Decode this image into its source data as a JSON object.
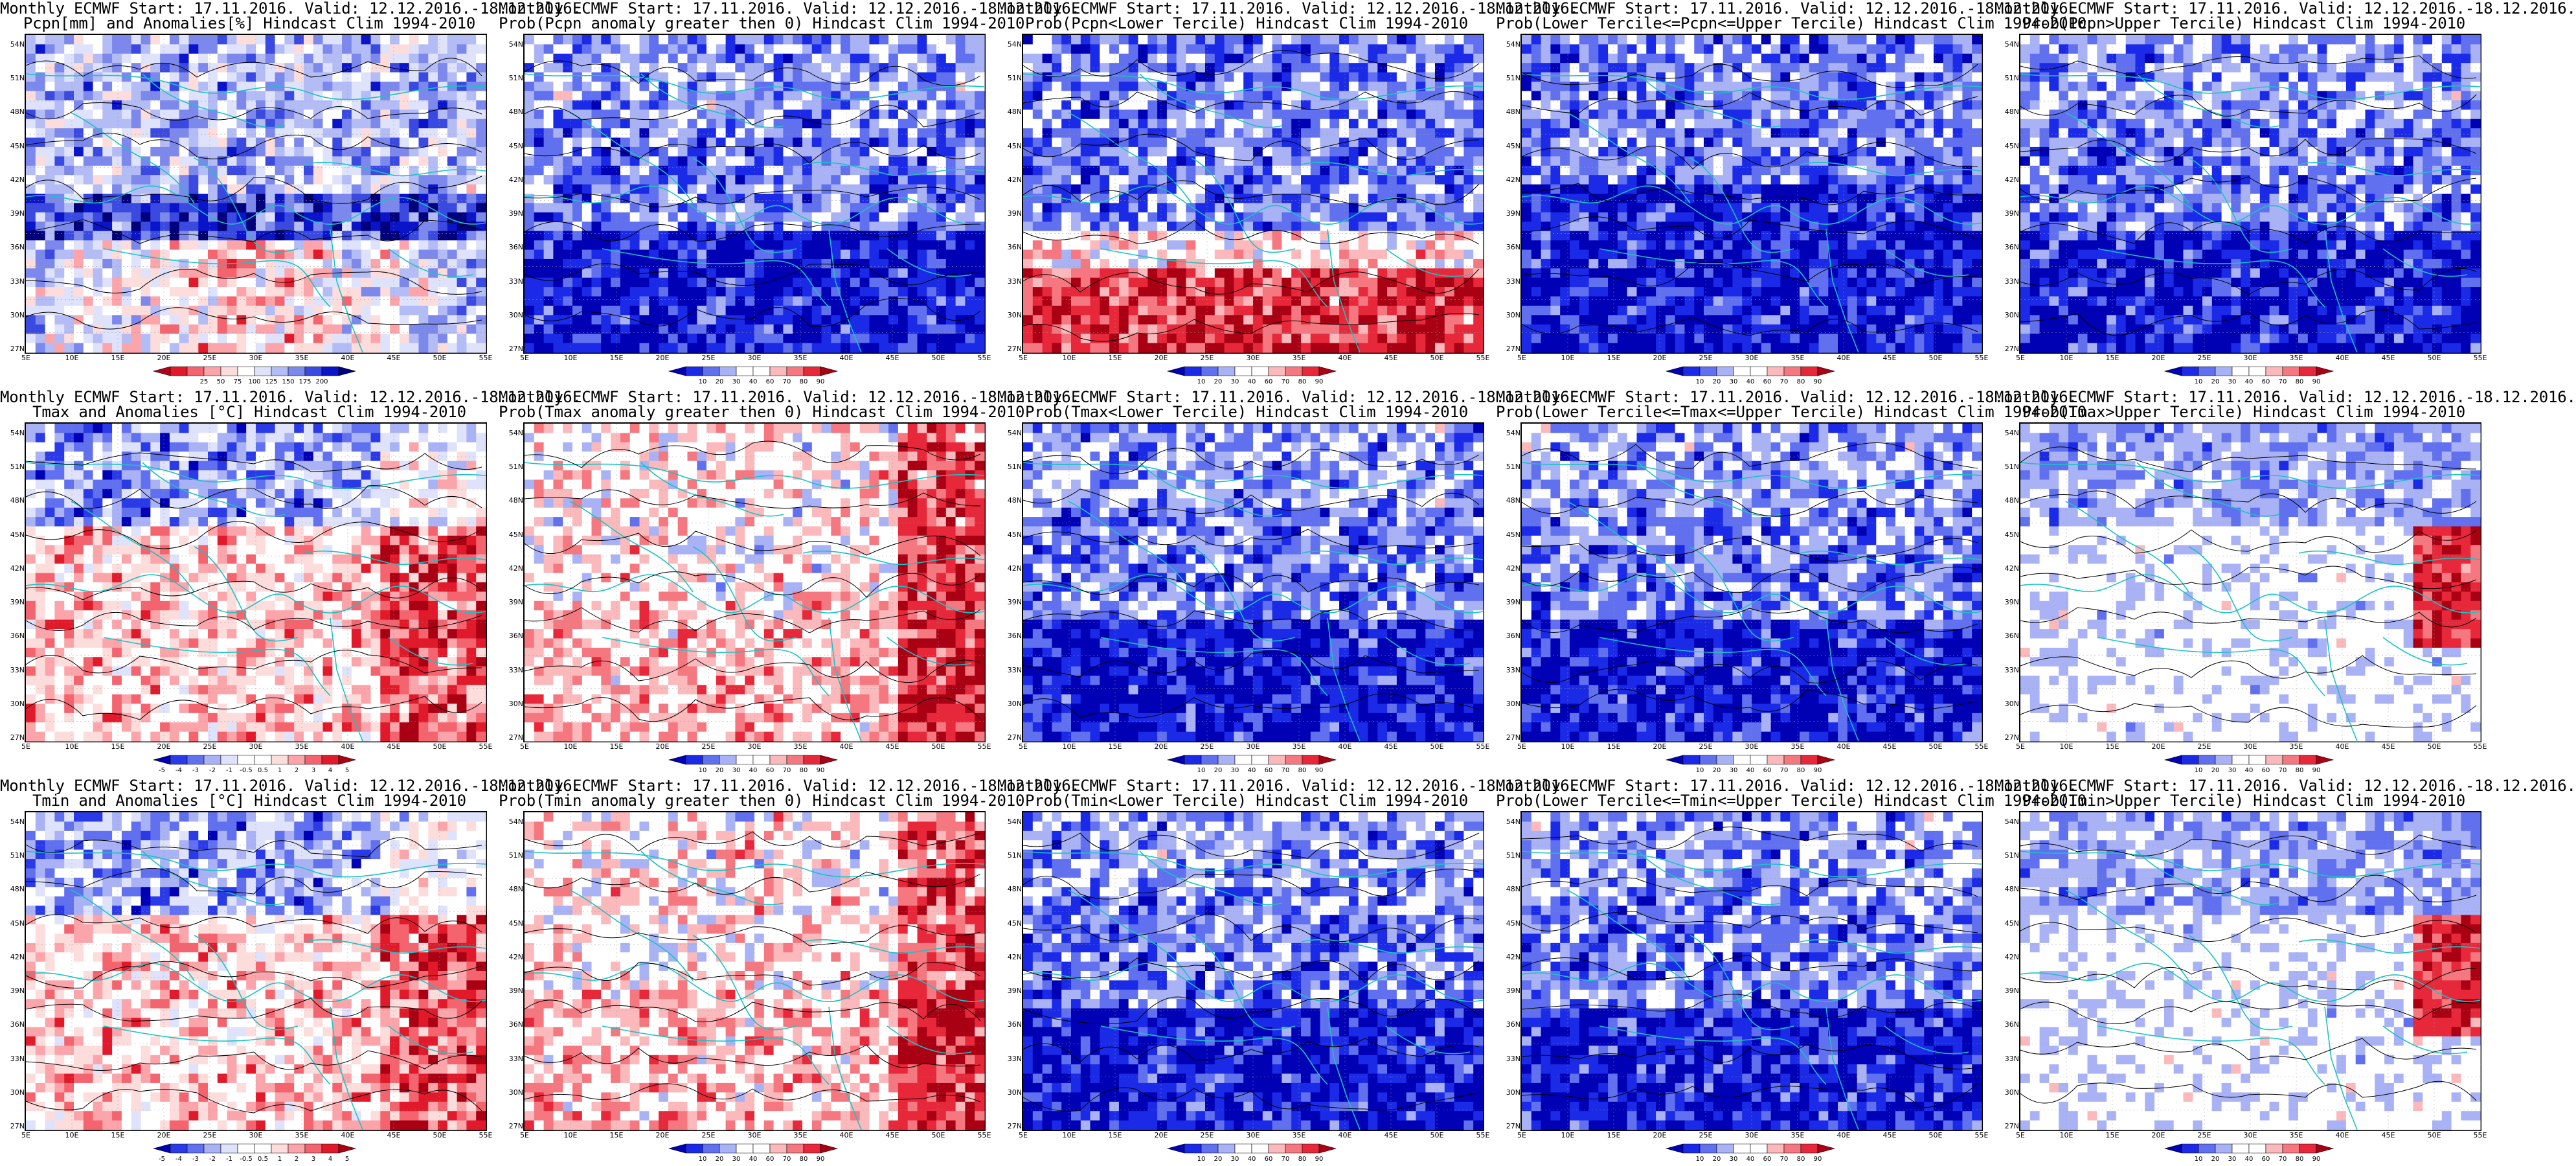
{
  "panels": [
    {
      "title1": "Monthly ECMWF Start: 17.11.2016. Valid: 12.12.2016.-18.12.2016.",
      "title2": "Pcpn[mm] and Anomalies[%] Hindcast Clim 1994-2010",
      "field": "pcpn_anom",
      "cbar": {
        "colors": [
          "#b2001a",
          "#e01a2a",
          "#f4646e",
          "#fba5ab",
          "#fddcdc",
          "#ffffff",
          "#dfe2fb",
          "#b4bcf5",
          "#7c88ec",
          "#3a4ae0",
          "#0a14c8",
          "#00007a"
        ],
        "labels": [
          "25",
          "50",
          "75",
          "100",
          "125",
          "150",
          "175",
          "200"
        ]
      }
    },
    {
      "title1": "Monthly ECMWF Start: 17.11.2016. Valid: 12.12.2016.-18.12.2016.",
      "title2": "Prob(Pcpn anomaly greater then 0) Hindcast Clim 1994-2010",
      "field": "prob_low",
      "cbar": {
        "colors": [
          "#0000b4",
          "#1a2ae6",
          "#6070ee",
          "#a9b2f5",
          "#ffffff",
          "#ffffff",
          "#fbb9bc",
          "#f57880",
          "#e6283a",
          "#aa0014"
        ],
        "labels": [
          "10",
          "20",
          "30",
          "40",
          "60",
          "70",
          "80",
          "90"
        ]
      }
    },
    {
      "title1": "Monthly ECMWF Start: 17.11.2016. Valid: 12.12.2016.-18.12.2016.",
      "title2": "Prob(Pcpn<Lower Tercile) Hindcast Clim 1994-2010",
      "field": "prob_mixed",
      "cbar": {
        "colors": [
          "#0000b4",
          "#1a2ae6",
          "#6070ee",
          "#a9b2f5",
          "#ffffff",
          "#ffffff",
          "#fbb9bc",
          "#f57880",
          "#e6283a",
          "#aa0014"
        ],
        "labels": [
          "10",
          "20",
          "30",
          "40",
          "60",
          "70",
          "80",
          "90"
        ]
      }
    },
    {
      "title1": "Monthly ECMWF Start: 17.11.2016. Valid: 12.12.2016.-18.12.2016.",
      "title2": "Prob(Lower Tercile<=Pcpn<=Upper Tercile) Hindcast Clim 1994-2010",
      "field": "prob_vlow",
      "cbar": {
        "colors": [
          "#0000b4",
          "#1a2ae6",
          "#6070ee",
          "#a9b2f5",
          "#ffffff",
          "#ffffff",
          "#fbb9bc",
          "#f57880",
          "#e6283a",
          "#aa0014"
        ],
        "labels": [
          "10",
          "20",
          "30",
          "40",
          "60",
          "70",
          "80",
          "90"
        ]
      }
    },
    {
      "title1": "Monthly ECMWF Start: 17.11.2016. Valid: 12.12.2016.-18.12.2016.",
      "title2": "Prob(Pcpn>Upper Tercile) Hindcast Clim 1994-2010",
      "field": "prob_low",
      "cbar": {
        "colors": [
          "#0000b4",
          "#1a2ae6",
          "#6070ee",
          "#a9b2f5",
          "#ffffff",
          "#ffffff",
          "#fbb9bc",
          "#f57880",
          "#e6283a",
          "#aa0014"
        ],
        "labels": [
          "10",
          "20",
          "30",
          "40",
          "60",
          "70",
          "80",
          "90"
        ]
      }
    },
    {
      "title1": "Monthly ECMWF Start: 17.11.2016. Valid: 12.12.2016.-18.12.2016.",
      "title2": "Tmax and Anomalies [°C] Hindcast Clim 1994-2010",
      "field": "temp_anom",
      "cbar": {
        "colors": [
          "#0000b4",
          "#2a3ae6",
          "#6070ee",
          "#a9b2f5",
          "#dfe2fb",
          "#ffffff",
          "#ffffff",
          "#fddcdc",
          "#fba5ab",
          "#f4646e",
          "#e01a2a",
          "#aa0014"
        ],
        "labels": [
          "-5",
          "-4",
          "-3",
          "-2",
          "-1",
          "-0.5",
          "0.5",
          "1",
          "2",
          "3",
          "4",
          "5"
        ]
      }
    },
    {
      "title1": "Monthly ECMWF Start: 17.11.2016. Valid: 12.12.2016.-18.12.2016.",
      "title2": "Prob(Tmax anomaly greater then 0) Hindcast Clim 1994-2010",
      "field": "prob_warm",
      "cbar": {
        "colors": [
          "#0000b4",
          "#1a2ae6",
          "#6070ee",
          "#a9b2f5",
          "#ffffff",
          "#ffffff",
          "#fbb9bc",
          "#f57880",
          "#e6283a",
          "#aa0014"
        ],
        "labels": [
          "10",
          "20",
          "30",
          "40",
          "60",
          "70",
          "80",
          "90"
        ]
      }
    },
    {
      "title1": "Monthly ECMWF Start: 17.11.2016. Valid: 12.12.2016.-18.12.2016.",
      "title2": "Prob(Tmax<Lower Tercile) Hindcast Clim 1994-2010",
      "field": "prob_low",
      "cbar": {
        "colors": [
          "#0000b4",
          "#1a2ae6",
          "#6070ee",
          "#a9b2f5",
          "#ffffff",
          "#ffffff",
          "#fbb9bc",
          "#f57880",
          "#e6283a",
          "#aa0014"
        ],
        "labels": [
          "10",
          "20",
          "30",
          "40",
          "60",
          "70",
          "80",
          "90"
        ]
      }
    },
    {
      "title1": "Monthly ECMWF Start: 17.11.2016. Valid: 12.12.2016.-18.12.2016.",
      "title2": "Prob(Lower Tercile<=Tmax<=Upper Tercile) Hindcast Clim 1994-2010",
      "field": "prob_low",
      "cbar": {
        "colors": [
          "#0000b4",
          "#1a2ae6",
          "#6070ee",
          "#a9b2f5",
          "#ffffff",
          "#ffffff",
          "#fbb9bc",
          "#f57880",
          "#e6283a",
          "#aa0014"
        ],
        "labels": [
          "10",
          "20",
          "30",
          "40",
          "60",
          "70",
          "80",
          "90"
        ]
      }
    },
    {
      "title1": "Monthly ECMWF Start: 17.11.2016. Valid: 12.12.2016.-18.12.2016.",
      "title2": "Prob(Tmax>Upper Tercile) Hindcast Clim 1994-2010",
      "field": "prob_pale",
      "cbar": {
        "colors": [
          "#0000b4",
          "#1a2ae6",
          "#6070ee",
          "#a9b2f5",
          "#ffffff",
          "#ffffff",
          "#fbb9bc",
          "#f57880",
          "#e6283a",
          "#aa0014"
        ],
        "labels": [
          "10",
          "20",
          "30",
          "40",
          "60",
          "70",
          "80",
          "90"
        ]
      }
    },
    {
      "title1": "Monthly ECMWF Start: 17.11.2016. Valid: 12.12.2016.-18.12.2016.",
      "title2": "Tmin and Anomalies [°C] Hindcast Clim 1994-2010",
      "field": "temp_anom",
      "cbar": {
        "colors": [
          "#0000b4",
          "#2a3ae6",
          "#6070ee",
          "#a9b2f5",
          "#dfe2fb",
          "#ffffff",
          "#ffffff",
          "#fddcdc",
          "#fba5ab",
          "#f4646e",
          "#e01a2a",
          "#aa0014"
        ],
        "labels": [
          "-5",
          "-4",
          "-3",
          "-2",
          "-1",
          "-0.5",
          "0.5",
          "1",
          "2",
          "3",
          "4",
          "5"
        ]
      }
    },
    {
      "title1": "Monthly ECMWF Start: 17.11.2016. Valid: 12.12.2016.-18.12.2016.",
      "title2": "Prob(Tmin anomaly greater then 0) Hindcast Clim 1994-2010",
      "field": "prob_warm",
      "cbar": {
        "colors": [
          "#0000b4",
          "#1a2ae6",
          "#6070ee",
          "#a9b2f5",
          "#ffffff",
          "#ffffff",
          "#fbb9bc",
          "#f57880",
          "#e6283a",
          "#aa0014"
        ],
        "labels": [
          "10",
          "20",
          "30",
          "40",
          "60",
          "70",
          "80",
          "90"
        ]
      }
    },
    {
      "title1": "Monthly ECMWF Start: 17.11.2016. Valid: 12.12.2016.-18.12.2016.",
      "title2": "Prob(Tmin<Lower Tercile) Hindcast Clim 1994-2010",
      "field": "prob_low",
      "cbar": {
        "colors": [
          "#0000b4",
          "#1a2ae6",
          "#6070ee",
          "#a9b2f5",
          "#ffffff",
          "#ffffff",
          "#fbb9bc",
          "#f57880",
          "#e6283a",
          "#aa0014"
        ],
        "labels": [
          "10",
          "20",
          "30",
          "40",
          "60",
          "70",
          "80",
          "90"
        ]
      }
    },
    {
      "title1": "Monthly ECMWF Start: 17.11.2016. Valid: 12.12.2016.-18.12.2016.",
      "title2": "Prob(Lower Tercile<=Tmin<=Upper Tercile) Hindcast Clim 1994-2010",
      "field": "prob_low",
      "cbar": {
        "colors": [
          "#0000b4",
          "#1a2ae6",
          "#6070ee",
          "#a9b2f5",
          "#ffffff",
          "#ffffff",
          "#fbb9bc",
          "#f57880",
          "#e6283a",
          "#aa0014"
        ],
        "labels": [
          "10",
          "20",
          "30",
          "40",
          "60",
          "70",
          "80",
          "90"
        ]
      }
    },
    {
      "title1": "Monthly ECMWF Start: 17.11.2016. Valid: 12.12.2016.-18.12.2016.",
      "title2": "Prob(Tmin>Upper Tercile) Hindcast Clim 1994-2010",
      "field": "prob_pale",
      "cbar": {
        "colors": [
          "#0000b4",
          "#1a2ae6",
          "#6070ee",
          "#a9b2f5",
          "#ffffff",
          "#ffffff",
          "#fbb9bc",
          "#f57880",
          "#e6283a",
          "#aa0014"
        ],
        "labels": [
          "10",
          "20",
          "30",
          "40",
          "60",
          "70",
          "80",
          "90"
        ]
      }
    }
  ],
  "lat_labels": [
    "54N",
    "51N",
    "48N",
    "45N",
    "42N",
    "39N",
    "36N",
    "33N",
    "30N",
    "27N"
  ],
  "lon_labels": [
    "5E",
    "10E",
    "15E",
    "20E",
    "25E",
    "30E",
    "35E",
    "40E",
    "45E",
    "50E",
    "55E"
  ],
  "colors": {
    "coast": "#19c3c3",
    "contour": "#000000"
  }
}
